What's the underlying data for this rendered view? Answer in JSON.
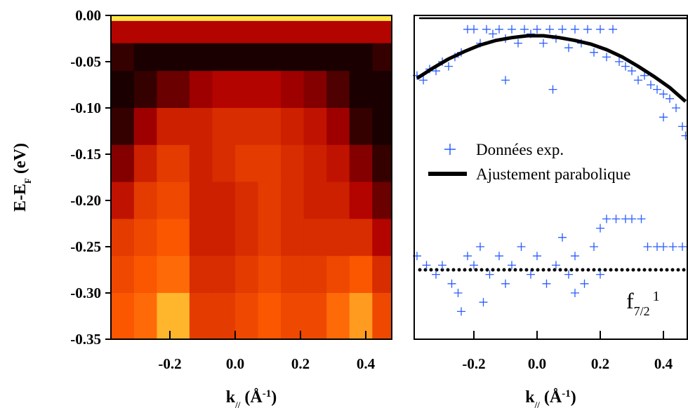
{
  "chart_data": [
    {
      "type": "heatmap",
      "xlim": [
        -0.38,
        0.48
      ],
      "ylim": [
        -0.35,
        0
      ],
      "xticks": [
        -0.2,
        {
          "value": 0,
          "label": "0.0"
        },
        0.2,
        0.4
      ],
      "yticks": [
        {
          "value": 0,
          "label": "0.00"
        },
        {
          "value": -0.05,
          "label": "-0.05"
        },
        {
          "value": -0.1,
          "label": "-0.10"
        },
        {
          "value": -0.15,
          "label": "-0.15"
        },
        {
          "value": -0.2,
          "label": "-0.20"
        },
        {
          "value": -0.25,
          "label": "-0.25"
        },
        {
          "value": -0.3,
          "label": "-0.30"
        },
        {
          "value": -0.35,
          "label": "-0.35"
        }
      ],
      "xlabel_parts": [
        "k",
        "//",
        " (Å",
        "-1",
        ")"
      ],
      "ylabel_parts": [
        "E-E",
        "F",
        " (eV)"
      ],
      "colormap": [
        "#000000",
        "#b00000",
        "#ff5a00",
        "#ffff50"
      ],
      "xbins": [
        -0.38,
        -0.31,
        -0.24,
        -0.14,
        -0.07,
        0.0,
        0.07,
        0.14,
        0.21,
        0.28,
        0.35,
        0.42,
        0.48
      ],
      "ybins": [
        0,
        -0.006,
        -0.03,
        -0.06,
        -0.1,
        -0.14,
        -0.18,
        -0.22,
        -0.26,
        -0.3,
        -0.35
      ],
      "z": [
        [
          0.95,
          0.95,
          0.95,
          0.95,
          0.95,
          0.95,
          0.95,
          0.95,
          0.95,
          0.95,
          0.95,
          0.95
        ],
        [
          0.35,
          0.35,
          0.35,
          0.35,
          0.35,
          0.35,
          0.35,
          0.35,
          0.35,
          0.35,
          0.35,
          0.35
        ],
        [
          0.1,
          0.05,
          0.05,
          0.05,
          0.05,
          0.05,
          0.05,
          0.05,
          0.05,
          0.05,
          0.05,
          0.1
        ],
        [
          0.05,
          0.1,
          0.2,
          0.3,
          0.35,
          0.35,
          0.35,
          0.3,
          0.25,
          0.15,
          0.05,
          0.05
        ],
        [
          0.1,
          0.3,
          0.45,
          0.45,
          0.5,
          0.5,
          0.5,
          0.45,
          0.4,
          0.3,
          0.1,
          0.05
        ],
        [
          0.25,
          0.45,
          0.55,
          0.45,
          0.5,
          0.55,
          0.55,
          0.5,
          0.45,
          0.4,
          0.25,
          0.1
        ],
        [
          0.4,
          0.55,
          0.6,
          0.45,
          0.45,
          0.5,
          0.55,
          0.5,
          0.45,
          0.45,
          0.35,
          0.2
        ],
        [
          0.55,
          0.6,
          0.65,
          0.45,
          0.45,
          0.5,
          0.55,
          0.5,
          0.5,
          0.5,
          0.5,
          0.35
        ],
        [
          0.6,
          0.65,
          0.7,
          0.5,
          0.5,
          0.55,
          0.6,
          0.55,
          0.55,
          0.6,
          0.65,
          0.5
        ],
        [
          0.65,
          0.7,
          0.85,
          0.55,
          0.55,
          0.6,
          0.65,
          0.6,
          0.6,
          0.7,
          0.8,
          0.6
        ]
      ]
    },
    {
      "type": "scatter",
      "xlim": [
        -0.39,
        0.475
      ],
      "ylim": [
        -0.35,
        0
      ],
      "xticks": [
        -0.2,
        {
          "value": 0,
          "label": "0.0"
        },
        0.2,
        0.4
      ],
      "xlabel_parts": [
        "k",
        "//",
        " (Å",
        "-1",
        ")"
      ],
      "series": [
        {
          "name": "Données exp.",
          "color": "#2a5cff",
          "x": [
            -0.38,
            -0.36,
            -0.34,
            -0.32,
            -0.3,
            -0.28,
            -0.26,
            -0.24,
            -0.22,
            -0.2,
            -0.18,
            -0.16,
            -0.14,
            -0.12,
            -0.1,
            -0.08,
            -0.06,
            -0.04,
            -0.02,
            0.0,
            0.02,
            0.04,
            0.06,
            0.08,
            0.1,
            0.12,
            0.14,
            0.16,
            0.18,
            0.2,
            0.22,
            0.24,
            0.26,
            0.28,
            0.3,
            0.32,
            0.34,
            0.36,
            0.38,
            0.4,
            0.42,
            0.44,
            0.46,
            0.47,
            -0.1,
            0.05,
            0.4,
            -0.38,
            -0.35,
            -0.32,
            -0.3,
            -0.27,
            -0.25,
            -0.24,
            -0.22,
            -0.2,
            -0.18,
            -0.15,
            -0.12,
            -0.1,
            -0.08,
            -0.05,
            -0.02,
            0.0,
            0.03,
            0.06,
            0.08,
            0.1,
            0.12,
            0.15,
            0.18,
            0.2,
            0.22,
            0.25,
            0.28,
            0.3,
            0.33,
            0.35,
            0.38,
            0.4,
            0.43,
            0.46,
            0.12,
            -0.17,
            0.2
          ],
          "y": [
            -0.065,
            -0.07,
            -0.058,
            -0.06,
            -0.05,
            -0.055,
            -0.045,
            -0.04,
            -0.015,
            -0.015,
            -0.03,
            -0.015,
            -0.02,
            -0.015,
            -0.025,
            -0.015,
            -0.03,
            -0.015,
            -0.02,
            -0.015,
            -0.03,
            -0.015,
            -0.025,
            -0.015,
            -0.035,
            -0.015,
            -0.03,
            -0.015,
            -0.04,
            -0.015,
            -0.045,
            -0.015,
            -0.05,
            -0.055,
            -0.06,
            -0.07,
            -0.065,
            -0.075,
            -0.08,
            -0.085,
            -0.09,
            -0.1,
            -0.12,
            -0.13,
            -0.07,
            -0.08,
            -0.11,
            -0.26,
            -0.27,
            -0.28,
            -0.27,
            -0.29,
            -0.3,
            -0.32,
            -0.26,
            -0.27,
            -0.25,
            -0.28,
            -0.26,
            -0.29,
            -0.27,
            -0.25,
            -0.28,
            -0.26,
            -0.29,
            -0.27,
            -0.24,
            -0.28,
            -0.26,
            -0.29,
            -0.25,
            -0.23,
            -0.22,
            -0.22,
            -0.22,
            -0.22,
            -0.22,
            -0.25,
            -0.25,
            -0.25,
            -0.25,
            -0.25,
            -0.3,
            -0.31,
            -0.28
          ]
        }
      ],
      "lines": [
        {
          "name": "Ajustement parabolique",
          "color": "#000000",
          "x": [
            -0.38,
            -0.33,
            -0.28,
            -0.23,
            -0.18,
            -0.13,
            -0.08,
            -0.03,
            0.02,
            0.07,
            0.12,
            0.17,
            0.22,
            0.27,
            0.32,
            0.37,
            0.42,
            0.47
          ],
          "y": [
            -0.068,
            -0.057,
            -0.047,
            -0.039,
            -0.032,
            -0.027,
            -0.024,
            -0.022,
            -0.022,
            -0.024,
            -0.027,
            -0.031,
            -0.037,
            -0.045,
            -0.055,
            -0.066,
            -0.078,
            -0.093
          ]
        }
      ],
      "reference_lines": [
        {
          "y": -0.003,
          "style": "solid"
        },
        {
          "y": -0.275,
          "style": "dotted"
        }
      ],
      "annotation_parts": [
        "f",
        "7/2",
        "1"
      ]
    }
  ]
}
